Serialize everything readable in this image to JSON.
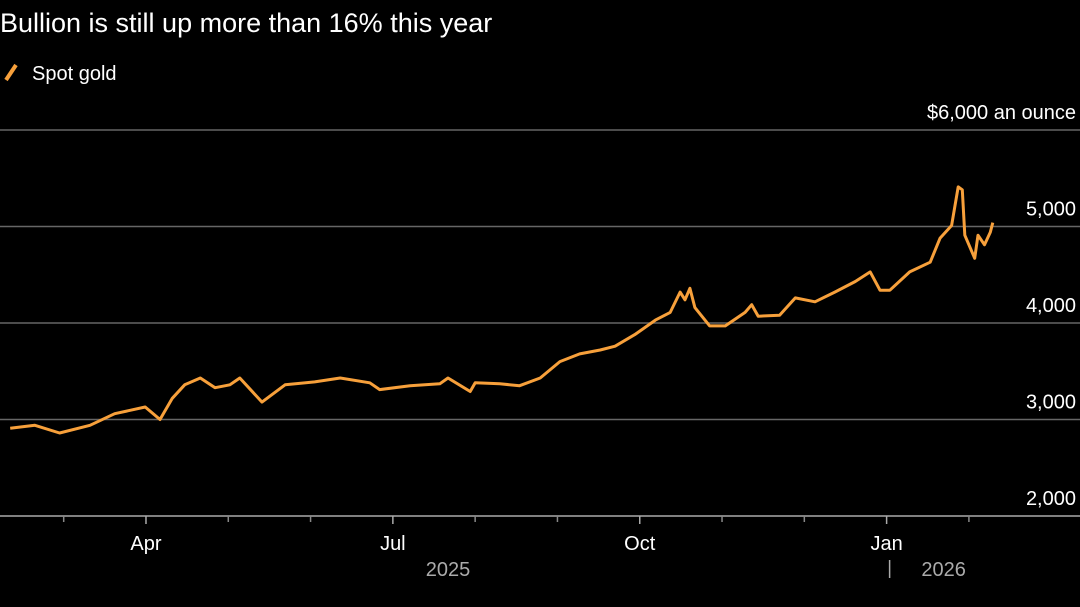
{
  "chart_data": {
    "type": "line",
    "subtitle": "Bullion is still up more than 16% this year",
    "series": [
      {
        "name": "Spot gold",
        "color": "#f7a03b",
        "x": [
          2.35,
          2.65,
          2.95,
          3.32,
          3.62,
          3.99,
          4.17,
          4.32,
          4.47,
          4.66,
          4.84,
          5.02,
          5.14,
          5.41,
          5.69,
          6.05,
          6.36,
          6.72,
          6.84,
          7.21,
          7.57,
          7.67,
          7.94,
          8.0,
          8.3,
          8.54,
          8.79,
          9.03,
          9.27,
          9.52,
          9.7,
          9.94,
          10.19,
          10.37,
          10.49,
          10.55,
          10.61,
          10.67,
          10.85,
          11.04,
          11.28,
          11.36,
          11.44,
          11.7,
          11.89,
          12.13,
          12.37,
          12.62,
          12.8,
          12.92,
          13.04,
          13.28,
          13.53,
          13.65,
          13.79,
          13.87,
          13.92,
          13.95,
          14.07,
          14.11,
          14.19,
          14.26,
          14.29
        ],
        "values": [
          2910,
          2940,
          2860,
          2940,
          3060,
          3130,
          3000,
          3220,
          3360,
          3430,
          3330,
          3360,
          3430,
          3180,
          3360,
          3390,
          3430,
          3380,
          3310,
          3350,
          3370,
          3430,
          3290,
          3380,
          3370,
          3350,
          3430,
          3600,
          3680,
          3720,
          3760,
          3880,
          4030,
          4110,
          4320,
          4240,
          4360,
          4160,
          3970,
          3970,
          4110,
          4190,
          4070,
          4080,
          4260,
          4220,
          4320,
          4430,
          4530,
          4340,
          4340,
          4530,
          4630,
          4880,
          5010,
          5410,
          5380,
          4910,
          4670,
          4910,
          4810,
          4940,
          5040
        ]
      }
    ],
    "xlim": [
      2.226,
      15.35
    ],
    "xticks": [
      {
        "value": 4,
        "label": "Apr"
      },
      {
        "value": 7,
        "label": "Jul"
      },
      {
        "value": 10,
        "label": "Oct"
      },
      {
        "value": 13,
        "label": "Jan"
      }
    ],
    "xminor": [
      3,
      5,
      6,
      8,
      9,
      11,
      12,
      14
    ],
    "year_labels": [
      "2025",
      "2026"
    ],
    "ylim": [
      2000,
      6000
    ],
    "yticks": [
      {
        "value": 2000,
        "label": "2,000"
      },
      {
        "value": 3000,
        "label": "3,000"
      },
      {
        "value": 4000,
        "label": "4,000"
      },
      {
        "value": 5000,
        "label": "5,000"
      },
      {
        "value": 6000,
        "label": "$6,000 an ounce"
      }
    ],
    "grid": true
  }
}
